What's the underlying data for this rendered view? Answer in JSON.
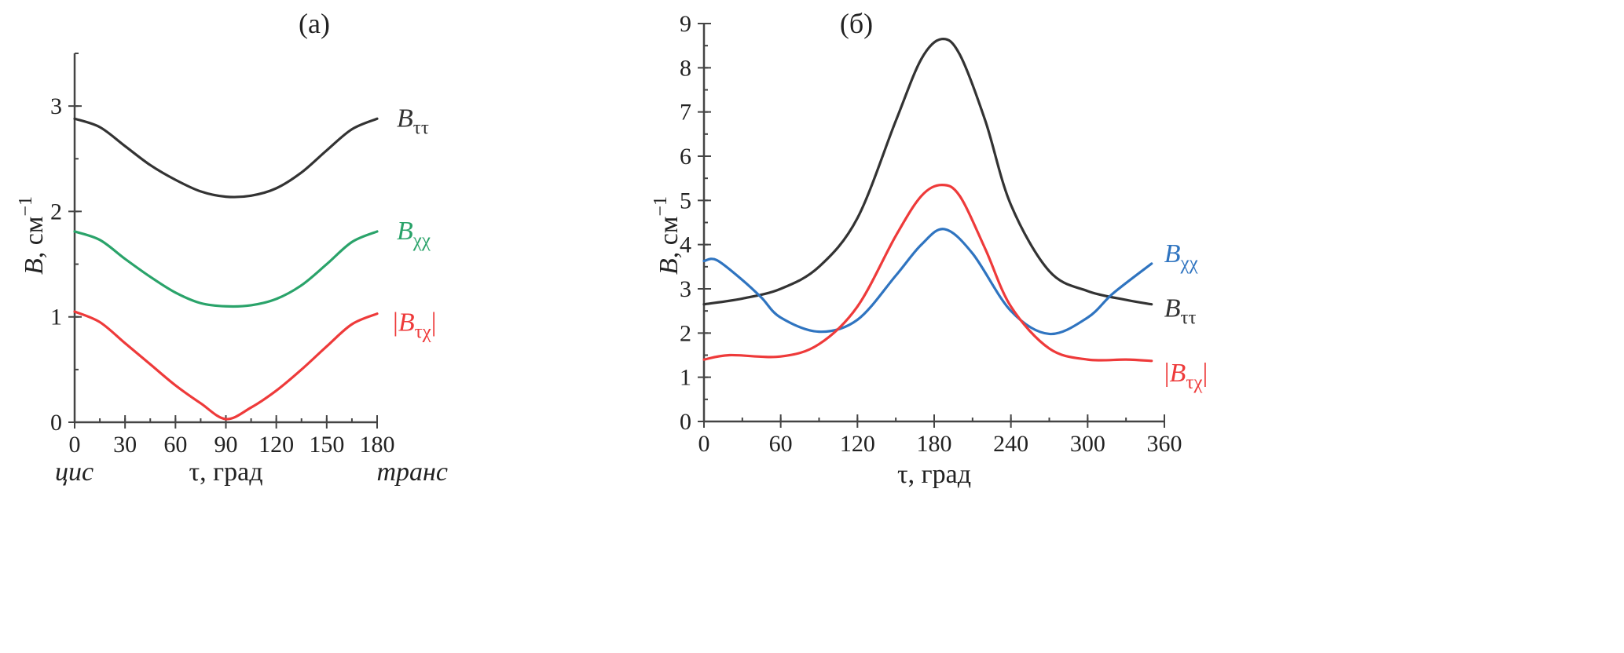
{
  "chart_data": [
    {
      "type": "line",
      "title": "(а)",
      "xlabel": "τ, град",
      "ylabel": "B, см⁻¹",
      "ylabel_main": "B",
      "ylabel_unit": ", см",
      "ylabel_exp": "−1",
      "xlim": [
        0,
        180
      ],
      "ylim": [
        0,
        3.5
      ],
      "xticks": [
        0,
        30,
        60,
        90,
        120,
        150,
        180
      ],
      "yticks": [
        0,
        1,
        2,
        3
      ],
      "xtick_labels": [
        "0",
        "30",
        "60",
        "90",
        "120",
        "150",
        "180"
      ],
      "ytick_labels": [
        "0",
        "1",
        "2",
        "3"
      ],
      "annotations": {
        "left": "цис",
        "right": "транс"
      },
      "grid": false,
      "series": [
        {
          "name": "Bττ",
          "label_main": "B",
          "label_sub": "ττ",
          "abs": false,
          "color": "#333333",
          "x": [
            0,
            15,
            30,
            45,
            60,
            75,
            90,
            105,
            120,
            135,
            150,
            165,
            180
          ],
          "y": [
            2.88,
            2.8,
            2.62,
            2.44,
            2.3,
            2.19,
            2.14,
            2.15,
            2.22,
            2.37,
            2.58,
            2.78,
            2.88
          ]
        },
        {
          "name": "Bχχ",
          "label_main": "B",
          "label_sub": "χχ",
          "abs": false,
          "color": "#2aa36a",
          "x": [
            0,
            15,
            30,
            45,
            60,
            75,
            90,
            105,
            120,
            135,
            150,
            165,
            180
          ],
          "y": [
            1.81,
            1.73,
            1.55,
            1.38,
            1.23,
            1.13,
            1.1,
            1.11,
            1.17,
            1.3,
            1.5,
            1.71,
            1.81
          ]
        },
        {
          "name": "|Bτχ|",
          "label_main": "B",
          "label_sub": "τχ",
          "abs": true,
          "color": "#ee3a3a",
          "x": [
            0,
            15,
            30,
            45,
            60,
            75,
            90,
            105,
            120,
            135,
            150,
            165,
            180
          ],
          "y": [
            1.05,
            0.95,
            0.75,
            0.55,
            0.35,
            0.18,
            0.03,
            0.14,
            0.3,
            0.5,
            0.72,
            0.93,
            1.03
          ]
        }
      ]
    },
    {
      "type": "line",
      "title": "(б)",
      "xlabel": "τ, град",
      "ylabel": "B, см⁻¹",
      "ylabel_main": "B",
      "ylabel_unit": ", см",
      "ylabel_exp": "−1",
      "xlim": [
        0,
        360
      ],
      "ylim": [
        0,
        9
      ],
      "xticks": [
        0,
        60,
        120,
        180,
        240,
        300,
        360
      ],
      "yticks": [
        0,
        1,
        2,
        3,
        4,
        5,
        6,
        7,
        8,
        9
      ],
      "xtick_labels": [
        "0",
        "60",
        "120",
        "180",
        "240",
        "300",
        "360"
      ],
      "ytick_labels": [
        "0",
        "1",
        "2",
        "3",
        "4",
        "5",
        "6",
        "7",
        "8",
        "9"
      ],
      "grid": false,
      "series": [
        {
          "name": "Bττ",
          "label_main": "B",
          "label_sub": "ττ",
          "abs": false,
          "color": "#333333",
          "x": [
            0,
            30,
            60,
            90,
            120,
            150,
            170,
            186,
            200,
            220,
            240,
            270,
            300,
            330,
            350
          ],
          "y": [
            2.65,
            2.78,
            3.0,
            3.5,
            4.6,
            6.8,
            8.2,
            8.65,
            8.3,
            6.8,
            4.9,
            3.4,
            2.95,
            2.75,
            2.65
          ]
        },
        {
          "name": "Bχχ",
          "label_main": "B",
          "label_sub": "χχ",
          "abs": false,
          "color": "#2f74c0",
          "x": [
            0,
            10,
            30,
            45,
            60,
            90,
            120,
            150,
            170,
            188,
            210,
            240,
            270,
            300,
            320,
            350
          ],
          "y": [
            3.63,
            3.65,
            3.2,
            2.8,
            2.35,
            2.03,
            2.3,
            3.3,
            4.0,
            4.35,
            3.8,
            2.5,
            1.98,
            2.35,
            2.9,
            3.57
          ]
        },
        {
          "name": "|Bτχ|",
          "label_main": "B",
          "label_sub": "τχ",
          "abs": true,
          "color": "#ee3a3a",
          "x": [
            0,
            20,
            60,
            90,
            120,
            150,
            170,
            186,
            200,
            220,
            240,
            270,
            300,
            330,
            350
          ],
          "y": [
            1.4,
            1.5,
            1.47,
            1.75,
            2.6,
            4.2,
            5.1,
            5.35,
            5.1,
            3.9,
            2.6,
            1.65,
            1.4,
            1.4,
            1.37
          ]
        }
      ]
    }
  ]
}
